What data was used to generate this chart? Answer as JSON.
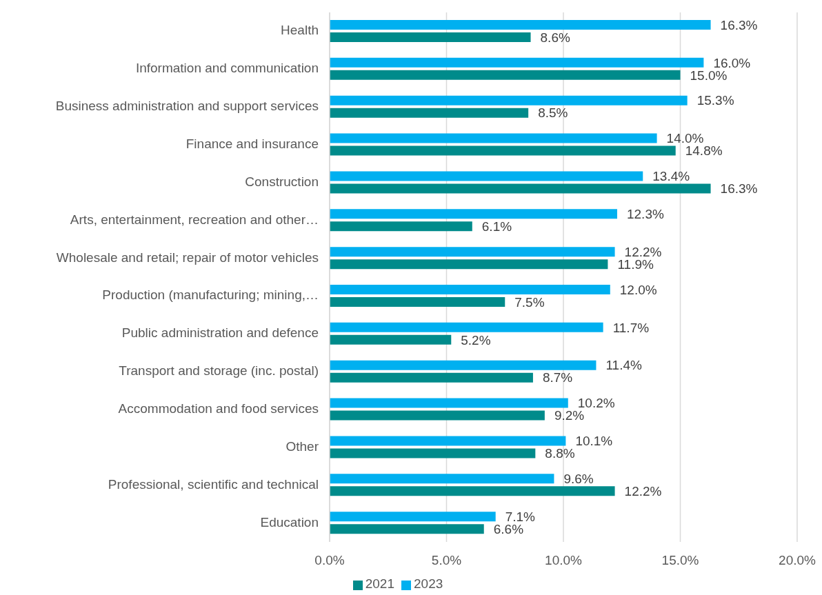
{
  "chart_data": {
    "type": "bar",
    "orientation": "horizontal",
    "categories": [
      "Health",
      "Information and communication",
      "Business administration and support services",
      "Finance and insurance",
      "Construction",
      "Arts, entertainment, recreation and other…",
      "Wholesale and retail; repair of motor vehicles",
      "Production (manufacturing; mining,…",
      "Public administration and defence",
      "Transport and storage (inc. postal)",
      "Accommodation and food services",
      "Other",
      "Professional, scientific and technical",
      "Education"
    ],
    "series": [
      {
        "name": "2023",
        "color": "#00b0f0",
        "values": [
          16.3,
          16.0,
          15.3,
          14.0,
          13.4,
          12.3,
          12.2,
          12.0,
          11.7,
          11.4,
          10.2,
          10.1,
          9.6,
          7.1
        ],
        "value_labels": [
          "16.3%",
          "16.0%",
          "15.3%",
          "14.0%",
          "13.4%",
          "12.3%",
          "12.2%",
          "12.0%",
          "11.7%",
          "11.4%",
          "10.2%",
          "10.1%",
          "9.6%",
          "7.1%"
        ]
      },
      {
        "name": "2021",
        "color": "#008b8b",
        "values": [
          8.6,
          15.0,
          8.5,
          14.8,
          16.3,
          6.1,
          11.9,
          7.5,
          5.2,
          8.7,
          9.2,
          8.8,
          12.2,
          6.6
        ],
        "value_labels": [
          "8.6%",
          "15.0%",
          "8.5%",
          "14.8%",
          "16.3%",
          "6.1%",
          "11.9%",
          "7.5%",
          "5.2%",
          "8.7%",
          "9.2%",
          "8.8%",
          "12.2%",
          "6.6%"
        ]
      }
    ],
    "xlim": [
      0,
      20
    ],
    "xticks": [
      {
        "value": 0,
        "label": "0.0%"
      },
      {
        "value": 5,
        "label": "5.0%"
      },
      {
        "value": 10,
        "label": "10.0%"
      },
      {
        "value": 15,
        "label": "15.0%"
      },
      {
        "value": 20,
        "label": "20.0%"
      }
    ],
    "grid": "x",
    "legend": "bottom"
  }
}
